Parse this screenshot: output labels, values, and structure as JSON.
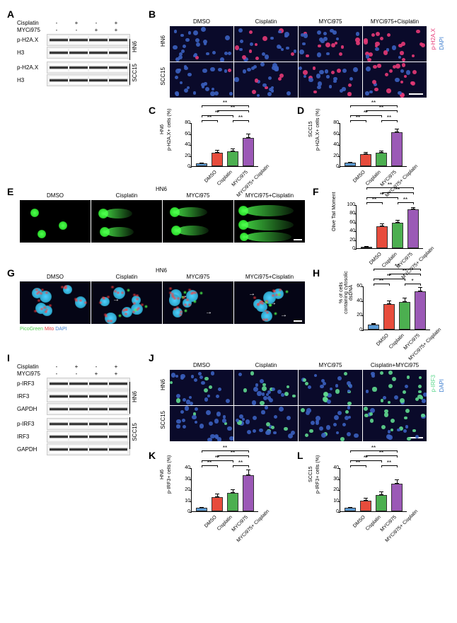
{
  "panel_labels": [
    "A",
    "B",
    "C",
    "D",
    "E",
    "F",
    "G",
    "H",
    "I",
    "J",
    "K",
    "L"
  ],
  "treatments": {
    "cisplatin": "Cisplatin",
    "myci": "MYCi975",
    "dmso": "DMSO",
    "combo": "MYCi975+Cisplatin",
    "combo2": "Cisplatin+MYCi975",
    "combo_break": "MYCi975+\nCisplatin",
    "marks_cisplatin": [
      "-",
      "+",
      "-",
      "+"
    ],
    "marks_myci": [
      "-",
      "-",
      "+",
      "+"
    ]
  },
  "cell_lines": {
    "hn6": "HN6",
    "scc15": "SCC15"
  },
  "blot_proteins": {
    "ph2ax": "p-H2A.X",
    "h3": "H3",
    "pirf3": "p-IRF3",
    "irf3": "IRF3",
    "gapdh": "GAPDH"
  },
  "if_stains": {
    "ph2ax_dapi": {
      "ph2ax": "p-H2A.X",
      "dapi": "DAPI"
    },
    "pirf3_dapi": {
      "pirf3": "p-IRF3",
      "dapi": "DAPI"
    },
    "pico": {
      "pico": "PicoGreen",
      "mito": "Mito",
      "dapi": "DAPI"
    }
  },
  "colors": {
    "bar_dmso": "#5b9bd5",
    "bar_cisplatin": "#e74c3c",
    "bar_myci": "#4caf50",
    "bar_combo": "#9b59b6",
    "ph2ax_red": "#e63976",
    "dapi_blue": "#3f7fcf",
    "pirf3_green": "#5fd88f",
    "pico_green": "#4fcf4f",
    "mito_red": "#e63939",
    "background": "#ffffff"
  },
  "chart_C": {
    "title": "HN6",
    "ylabel": "p-H2A.X+ cells (%)",
    "ylim": [
      0,
      80
    ],
    "ytick_step": 20,
    "categories": [
      "DMSO",
      "Cisplatin",
      "MYCi975",
      "MYCi975+\nCisplatin"
    ],
    "values": [
      5,
      25,
      27,
      52
    ],
    "errors": [
      2,
      5,
      5,
      8
    ],
    "sig": [
      [
        "**",
        0,
        1
      ],
      [
        "**",
        0,
        2
      ],
      [
        "**",
        1,
        3
      ],
      [
        "**",
        2,
        3
      ],
      [
        "**",
        0,
        3
      ]
    ]
  },
  "chart_D": {
    "title": "SCC15",
    "ylabel": "p-H2A.X+ cells (%)",
    "ylim": [
      0,
      80
    ],
    "ytick_step": 20,
    "categories": [
      "DMSO",
      "Cisplatin",
      "MYCi975",
      "MYCi975+\nCisplatin"
    ],
    "values": [
      6,
      22,
      25,
      62
    ],
    "errors": [
      2,
      4,
      4,
      7
    ],
    "sig": [
      [
        "**",
        0,
        1
      ],
      [
        "**",
        0,
        2
      ],
      [
        "**",
        1,
        3
      ],
      [
        "**",
        2,
        3
      ],
      [
        "**",
        0,
        3
      ]
    ]
  },
  "chart_F": {
    "title": "",
    "ylabel": "Olive Tail Moment",
    "ylim": [
      0,
      100
    ],
    "ytick_step": 20,
    "categories": [
      "DMSO",
      "Cisplatin",
      "MYCi975",
      "MYCi975+\nCisplatin"
    ],
    "values": [
      3,
      50,
      58,
      88
    ],
    "errors": [
      1,
      6,
      6,
      5
    ],
    "sig": [
      [
        "**",
        0,
        1
      ],
      [
        "**",
        0,
        2
      ],
      [
        "**",
        1,
        3
      ],
      [
        "**",
        2,
        3
      ],
      [
        "**",
        0,
        3
      ]
    ]
  },
  "chart_H": {
    "title": "",
    "ylabel": "% of cells containing\ncytosolic dsDNA",
    "ylim": [
      0,
      60
    ],
    "ytick_step": 20,
    "categories": [
      "DMSO",
      "Cisplatin",
      "MYCi975",
      "MYCi975+\nCisplatin"
    ],
    "values": [
      7,
      35,
      38,
      52
    ],
    "errors": [
      2,
      5,
      6,
      6
    ],
    "sig": [
      [
        "**",
        0,
        1
      ],
      [
        "**",
        0,
        2
      ],
      [
        "**",
        1,
        3
      ],
      [
        "*",
        2,
        3
      ],
      [
        "**",
        0,
        3
      ]
    ]
  },
  "chart_K": {
    "title": "HN6",
    "ylabel": "p-IRF3+ cells (%)",
    "ylim": [
      0,
      40
    ],
    "ytick_step": 10,
    "categories": [
      "DMSO",
      "Cisplatin",
      "MYCi975",
      "MYCi975+\nCisplatin"
    ],
    "values": [
      3,
      13,
      17,
      33
    ],
    "errors": [
      1,
      3,
      3,
      5
    ],
    "sig": [
      [
        "**",
        0,
        1
      ],
      [
        "**",
        0,
        2
      ],
      [
        "**",
        1,
        3
      ],
      [
        "**",
        2,
        3
      ],
      [
        "**",
        0,
        3
      ]
    ]
  },
  "chart_L": {
    "title": "SCC15",
    "ylabel": "p-IRF3+ cells (%)",
    "ylim": [
      0,
      40
    ],
    "ytick_step": 10,
    "categories": [
      "DMSO",
      "Cisplatin",
      "MYCi975",
      "MYCi975+\nCisplatin"
    ],
    "values": [
      3,
      10,
      15,
      25
    ],
    "errors": [
      1,
      2,
      3,
      4
    ],
    "sig": [
      [
        "**",
        0,
        1
      ],
      [
        "**",
        0,
        2
      ],
      [
        "**",
        1,
        3
      ],
      [
        "**",
        2,
        3
      ],
      [
        "**",
        0,
        3
      ]
    ]
  }
}
